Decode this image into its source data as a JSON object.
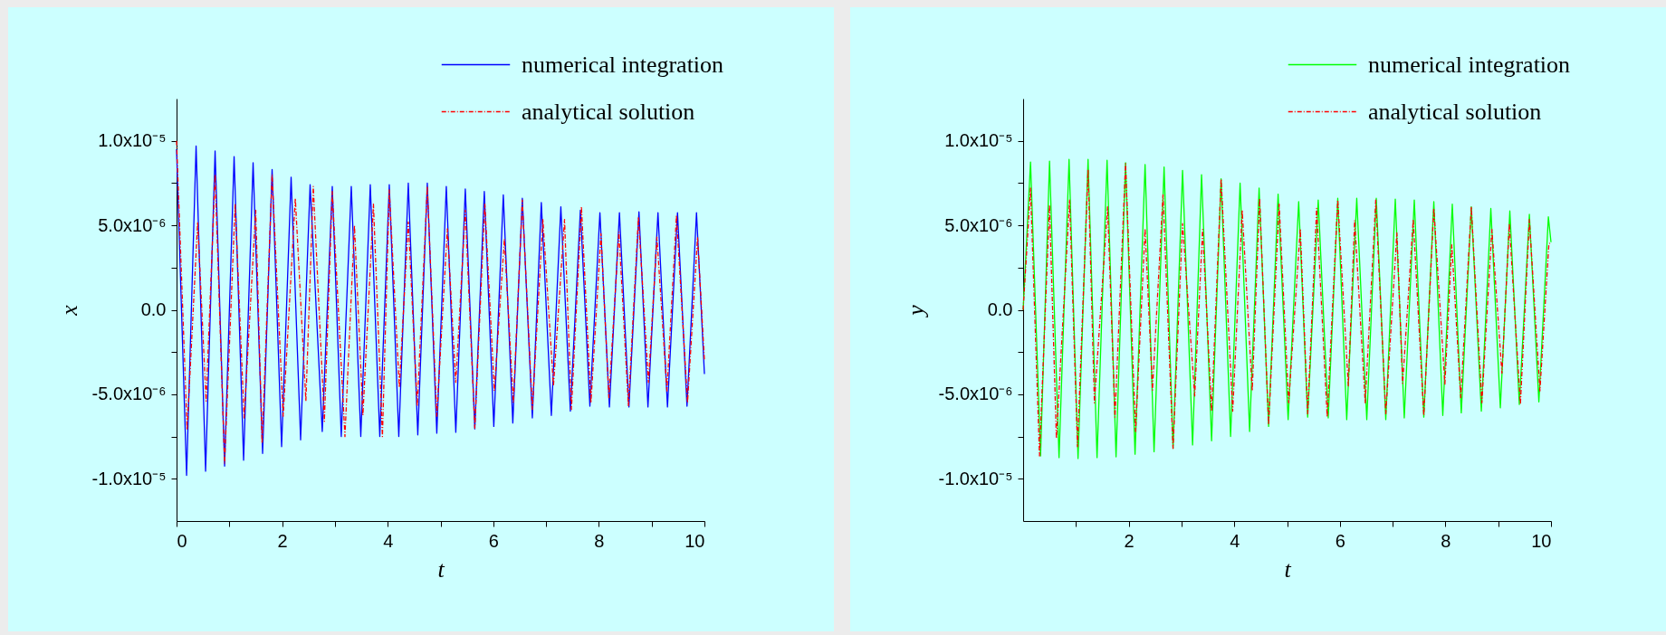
{
  "chart_data": [
    {
      "type": "line",
      "xlabel": "t",
      "ylabel": "x",
      "legend": "top right",
      "xlim": [
        0,
        10
      ],
      "ylim": [
        -1.25e-05,
        1.25e-05
      ],
      "xticks": [
        0,
        {
          "value": 1,
          "label": null
        },
        2,
        {
          "value": 3,
          "label": null
        },
        4,
        {
          "value": 5,
          "label": null
        },
        6,
        {
          "value": 7,
          "label": null
        },
        8,
        {
          "value": 9,
          "label": null
        },
        10
      ],
      "yticks": [
        {
          "value": -1e-05,
          "label": "-1.0x10⁻⁵"
        },
        {
          "value": -7.5e-06,
          "label": null
        },
        {
          "value": -5e-06,
          "label": "-5.0x10⁻⁶"
        },
        {
          "value": -2.5e-06,
          "label": null
        },
        {
          "value": 0,
          "label": "0.0"
        },
        {
          "value": 2.5e-06,
          "label": null
        },
        {
          "value": 5e-06,
          "label": "5.0x10⁻⁶"
        },
        {
          "value": 7.5e-06,
          "label": null
        },
        {
          "value": 1e-05,
          "label": "1.0x10⁻⁵"
        }
      ],
      "series": [
        {
          "name": "numerical integration",
          "color": "#0000ff",
          "line_style": "solid",
          "x": [
            0,
            0.19,
            0.37,
            0.55,
            0.73,
            0.91,
            1.09,
            1.27,
            1.45,
            1.63,
            1.81,
            1.99,
            2.17,
            2.35,
            2.53,
            2.76,
            2.95,
            3.12,
            3.31,
            3.49,
            3.67,
            3.85,
            4.03,
            4.21,
            4.39,
            4.57,
            4.75,
            4.93,
            5.11,
            5.29,
            5.47,
            5.65,
            5.83,
            6.01,
            6.19,
            6.37,
            6.55,
            6.74,
            6.91,
            7.1,
            7.28,
            7.46,
            7.65,
            7.83,
            8.02,
            8.2,
            8.39,
            8.57,
            8.76,
            8.93,
            9.12,
            9.3,
            9.49,
            9.67,
            9.85,
            10
          ],
          "values": [
            9.5e-06,
            -9.8e-06,
            9.7e-06,
            -9.55e-06,
            9.4e-06,
            -9.25e-06,
            9.07e-06,
            -8.9e-06,
            8.7e-06,
            -8.5e-06,
            8.3e-06,
            -8.1e-06,
            7.85e-06,
            -7.7e-06,
            7.4e-06,
            -7.2e-06,
            7.3e-06,
            -7.5e-06,
            7.3e-06,
            -7.5e-06,
            7.4e-06,
            -7.5e-06,
            7.4e-06,
            -7.5e-06,
            7.5e-06,
            -7.4e-06,
            7.5e-06,
            -7.3e-06,
            7.3e-06,
            -7.25e-06,
            7.15e-06,
            -7.05e-06,
            7e-06,
            -6.9e-06,
            6.8e-06,
            -6.7e-06,
            6.6e-06,
            -6.4e-06,
            6.35e-06,
            -6.25e-06,
            6.1e-06,
            -6e-06,
            5.9e-06,
            -5.7e-06,
            5.75e-06,
            -5.75e-06,
            5.75e-06,
            -5.75e-06,
            5.8e-06,
            -5.75e-06,
            5.75e-06,
            -5.75e-06,
            5.75e-06,
            -5.7e-06,
            5.75e-06,
            -3.8e-06
          ]
        },
        {
          "name": "analytical solution",
          "color": "#ff0000",
          "line_style": "dashed",
          "x": [
            0,
            0.2,
            0.4,
            0.56,
            0.73,
            0.91,
            1.11,
            1.28,
            1.5,
            1.62,
            1.81,
            2.02,
            2.25,
            2.45,
            2.59,
            2.8,
            2.95,
            3.19,
            3.37,
            3.53,
            3.73,
            3.9,
            4.03,
            4.22,
            4.39,
            4.56,
            4.75,
            4.93,
            5.13,
            5.29,
            5.47,
            5.65,
            5.84,
            6.02,
            6.21,
            6.38,
            6.55,
            6.74,
            6.94,
            7.14,
            7.35,
            7.48,
            7.67,
            7.85,
            8.04,
            8.19,
            8.38,
            8.56,
            8.75,
            8.94,
            9.1,
            9.29,
            9.47,
            9.68,
            9.87,
            10
          ],
          "values": [
            1e-05,
            -7.1e-06,
            5.2e-06,
            -5.4e-06,
            8e-06,
            -9.1e-06,
            6.25e-06,
            -6.4e-06,
            5.9e-06,
            -7.9e-06,
            8e-06,
            -6.3e-06,
            6.6e-06,
            -5.4e-06,
            7.3e-06,
            -6.6e-06,
            7e-06,
            -7.5e-06,
            5e-06,
            -6.25e-06,
            6.25e-06,
            -7.5e-06,
            7.1e-06,
            -4.6e-06,
            5.2e-06,
            -5.7e-06,
            7.3e-06,
            -6.3e-06,
            4.8e-06,
            -4.3e-06,
            5.9e-06,
            -7e-06,
            6.25e-06,
            -4.8e-06,
            4.2e-06,
            -5.5e-06,
            6.5e-06,
            -5.9e-06,
            5.35e-06,
            -4.5e-06,
            5.35e-06,
            -5.9e-06,
            6.1e-06,
            -5.5e-06,
            4.5e-06,
            -5.2e-06,
            4.6e-06,
            -5.7e-06,
            5.5e-06,
            -4.3e-06,
            4.3e-06,
            -4.8e-06,
            5.6e-06,
            -5.5e-06,
            4.3e-06,
            -3e-06
          ]
        }
      ]
    },
    {
      "type": "line",
      "xlabel": "t",
      "ylabel": "y",
      "legend": "top right",
      "xlim": [
        0,
        10
      ],
      "ylim": [
        -1.25e-05,
        1.25e-05
      ],
      "xticks": [
        {
          "value": 1,
          "label": null
        },
        2,
        {
          "value": 3,
          "label": null
        },
        4,
        {
          "value": 5,
          "label": null
        },
        6,
        {
          "value": 7,
          "label": null
        },
        8,
        {
          "value": 9,
          "label": null
        },
        10
      ],
      "yticks": [
        {
          "value": -1e-05,
          "label": "-1.0x10⁻⁵"
        },
        {
          "value": -7.5e-06,
          "label": null
        },
        {
          "value": -5e-06,
          "label": "-5.0x10⁻⁶"
        },
        {
          "value": -2.5e-06,
          "label": null
        },
        {
          "value": 0,
          "label": "0.0"
        },
        {
          "value": 2.5e-06,
          "label": null
        },
        {
          "value": 5e-06,
          "label": "5.0x10⁻⁶"
        },
        {
          "value": 7.5e-06,
          "label": null
        },
        {
          "value": 1e-05,
          "label": "1.0x10⁻⁵"
        }
      ],
      "series": [
        {
          "name": "numerical integration",
          "color": "#00ff00",
          "line_style": "solid",
          "x": [
            0,
            0.14,
            0.33,
            0.5,
            0.68,
            0.87,
            1.04,
            1.23,
            1.4,
            1.59,
            1.76,
            1.94,
            2.12,
            2.31,
            2.48,
            2.67,
            2.84,
            3.02,
            3.21,
            3.38,
            3.57,
            3.75,
            3.93,
            4.11,
            4.29,
            4.47,
            4.65,
            4.83,
            5.02,
            5.22,
            5.39,
            5.59,
            5.78,
            5.96,
            6.13,
            6.32,
            6.51,
            6.69,
            6.87,
            7.05,
            7.22,
            7.41,
            7.59,
            7.78,
            7.95,
            8.13,
            8.3,
            8.49,
            8.68,
            8.86,
            9.04,
            9.22,
            9.4,
            9.59,
            9.77,
            9.95,
            10
          ],
          "values": [
            0,
            8.75e-06,
            -8.65e-06,
            8.8e-06,
            -8.75e-06,
            8.9e-06,
            -8.8e-06,
            8.9e-06,
            -8.75e-06,
            8.85e-06,
            -8.7e-06,
            8.7e-06,
            -8.55e-06,
            8.6e-06,
            -8.4e-06,
            8.45e-06,
            -8.2e-06,
            8.25e-06,
            -8e-06,
            8e-06,
            -7.75e-06,
            7.75e-06,
            -7.5e-06,
            7.5e-06,
            -7.2e-06,
            7.2e-06,
            -6.9e-06,
            6.85e-06,
            -6.5e-06,
            6.4e-06,
            -6.35e-06,
            6.5e-06,
            -6.4e-06,
            6.6e-06,
            -6.5e-06,
            6.6e-06,
            -6.5e-06,
            6.6e-06,
            -6.5e-06,
            6.55e-06,
            -6.4e-06,
            6.5e-06,
            -6.35e-06,
            6.4e-06,
            -6.25e-06,
            6.25e-06,
            -6.1e-06,
            6.1e-06,
            -6e-06,
            6e-06,
            -5.8e-06,
            5.85e-06,
            -5.6e-06,
            5.65e-06,
            -5.45e-06,
            5.5e-06,
            4e-06
          ]
        },
        {
          "name": "analytical solution",
          "color": "#ff0000",
          "line_style": "dashed",
          "x": [
            0,
            0.14,
            0.31,
            0.5,
            0.63,
            0.88,
            1.03,
            1.23,
            1.35,
            1.6,
            1.74,
            1.94,
            2.13,
            2.31,
            2.45,
            2.65,
            2.84,
            3.02,
            3.25,
            3.4,
            3.57,
            3.75,
            3.97,
            4.15,
            4.34,
            4.48,
            4.65,
            4.85,
            5.03,
            5.25,
            5.39,
            5.56,
            5.76,
            5.96,
            6.16,
            6.28,
            6.48,
            6.68,
            6.87,
            7.08,
            7.19,
            7.39,
            7.59,
            7.78,
            7.99,
            8.12,
            8.29,
            8.49,
            8.69,
            8.88,
            9.07,
            9.21,
            9.42,
            9.59,
            9.79,
            9.96,
            10
          ],
          "values": [
            0,
            7.2e-06,
            -8.65e-06,
            6.2e-06,
            -7.6e-06,
            6.5e-06,
            -8.1e-06,
            8.3e-06,
            -5.5e-06,
            6.1e-06,
            -6.35e-06,
            8.65e-06,
            -7.2e-06,
            4.8e-06,
            -4.75e-06,
            6.8e-06,
            -8.2e-06,
            5.1e-06,
            -5.1e-06,
            4.75e-06,
            -6e-06,
            7.75e-06,
            -6e-06,
            5.9e-06,
            -4.8e-06,
            6.6e-06,
            -6.8e-06,
            6.25e-06,
            -5.5e-06,
            4.8e-06,
            -6.15e-06,
            6e-06,
            -6.35e-06,
            6.5e-06,
            -4.5e-06,
            5.3e-06,
            -5.5e-06,
            6.5e-06,
            -6.15e-06,
            4.55e-06,
            -4.35e-06,
            5.35e-06,
            -6.25e-06,
            6e-06,
            -4.4e-06,
            3.85e-06,
            -5.2e-06,
            6.1e-06,
            -5.5e-06,
            4.75e-06,
            -3.75e-06,
            5.1e-06,
            -5.6e-06,
            5.35e-06,
            -4.8e-06,
            3.9e-06,
            4e-06
          ]
        }
      ]
    }
  ]
}
